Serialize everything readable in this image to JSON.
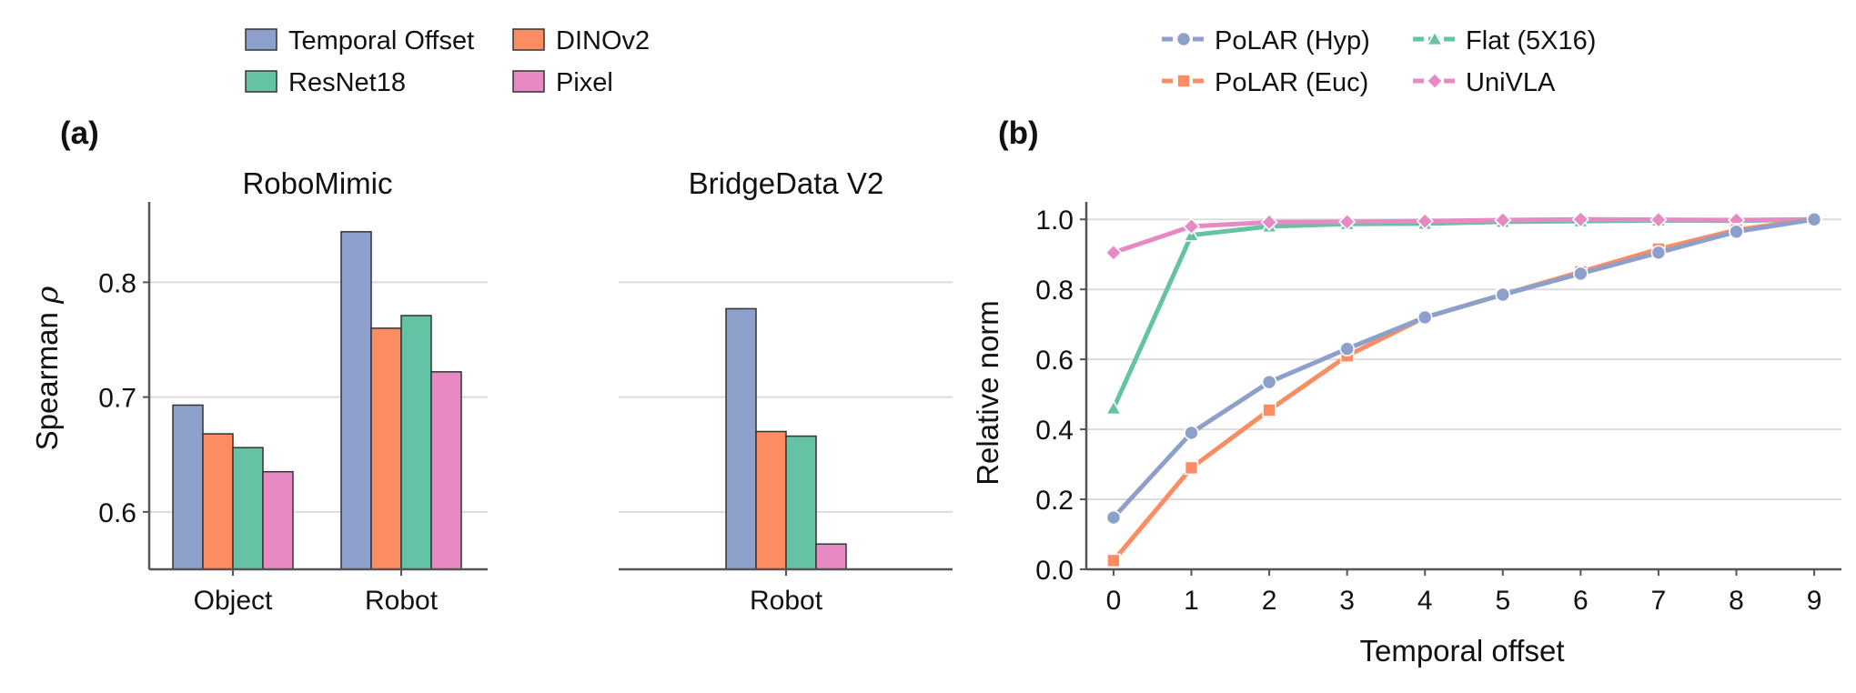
{
  "panel_a": {
    "label": "(a)",
    "legend": [
      {
        "name": "Temporal Offset",
        "color": "#8DA0CB"
      },
      {
        "name": "DINOv2",
        "color": "#FC8D62"
      },
      {
        "name": "ResNet18",
        "color": "#66C2A5"
      },
      {
        "name": "Pixel",
        "color": "#E78AC3"
      }
    ],
    "ylabel_main": "Spearman ",
    "ylabel_symbol": "ρ"
  },
  "panel_b": {
    "label": "(b)",
    "legend": [
      {
        "name": "PoLAR (Hyp)",
        "color": "#8DA0CB",
        "marker": "circle"
      },
      {
        "name": "PoLAR (Euc)",
        "color": "#FC8D62",
        "marker": "square"
      },
      {
        "name": "Flat (5X16)",
        "color": "#66C2A5",
        "marker": "triangle"
      },
      {
        "name": "UniVLA",
        "color": "#E78AC3",
        "marker": "diamond"
      }
    ]
  },
  "chart_data": [
    {
      "type": "bar",
      "title": "RoboMimic",
      "ylabel": "Spearman ρ",
      "categories": [
        "Object",
        "Robot"
      ],
      "series": [
        {
          "name": "Temporal Offset",
          "values": [
            0.693,
            0.844
          ],
          "color": "#8DA0CB"
        },
        {
          "name": "DINOv2",
          "values": [
            0.668,
            0.76
          ],
          "color": "#FC8D62"
        },
        {
          "name": "ResNet18",
          "values": [
            0.656,
            0.771
          ],
          "color": "#66C2A5"
        },
        {
          "name": "Pixel",
          "values": [
            0.635,
            0.722
          ],
          "color": "#E78AC3"
        }
      ],
      "ylim": [
        0.55,
        0.87
      ],
      "yticks": [
        "0.6",
        "0.7",
        "0.8"
      ],
      "grid": "horizontal"
    },
    {
      "type": "bar",
      "title": "BridgeData V2",
      "categories": [
        "Robot"
      ],
      "series": [
        {
          "name": "Temporal Offset",
          "values": [
            0.777
          ],
          "color": "#8DA0CB"
        },
        {
          "name": "DINOv2",
          "values": [
            0.67
          ],
          "color": "#FC8D62"
        },
        {
          "name": "ResNet18",
          "values": [
            0.666
          ],
          "color": "#66C2A5"
        },
        {
          "name": "Pixel",
          "values": [
            0.572
          ],
          "color": "#E78AC3"
        }
      ],
      "ylim": [
        0.55,
        0.87
      ],
      "grid": "horizontal"
    },
    {
      "type": "line",
      "xlabel": "Temporal offset",
      "ylabel": "Relative norm",
      "x": [
        0,
        1,
        2,
        3,
        4,
        5,
        6,
        7,
        8,
        9
      ],
      "series": [
        {
          "name": "Flat (5X16)",
          "color": "#66C2A5",
          "marker": "triangle",
          "values": [
            0.46,
            0.955,
            0.98,
            0.987,
            0.988,
            0.993,
            0.995,
            0.997,
            0.996,
            1.0
          ]
        },
        {
          "name": "UniVLA",
          "color": "#E78AC3",
          "marker": "diamond",
          "values": [
            0.905,
            0.98,
            0.992,
            0.993,
            0.995,
            0.998,
            1.0,
            0.999,
            0.998,
            1.0
          ]
        },
        {
          "name": "PoLAR (Euc)",
          "color": "#FC8D62",
          "marker": "square",
          "values": [
            0.025,
            0.29,
            0.455,
            0.61,
            0.72,
            0.785,
            0.85,
            0.915,
            0.97,
            1.0
          ]
        },
        {
          "name": "PoLAR (Hyp)",
          "color": "#8DA0CB",
          "marker": "circle",
          "values": [
            0.148,
            0.39,
            0.535,
            0.63,
            0.72,
            0.785,
            0.845,
            0.905,
            0.965,
            1.0
          ]
        }
      ],
      "xlim": [
        -0.35,
        9.35
      ],
      "ylim": [
        0,
        1.05
      ],
      "xticks": [
        "0",
        "1",
        "2",
        "3",
        "4",
        "5",
        "6",
        "7",
        "8",
        "9"
      ],
      "yticks": [
        "0.0",
        "0.2",
        "0.4",
        "0.6",
        "0.8",
        "1.0"
      ],
      "grid": "horizontal",
      "legend_position": "top"
    }
  ]
}
